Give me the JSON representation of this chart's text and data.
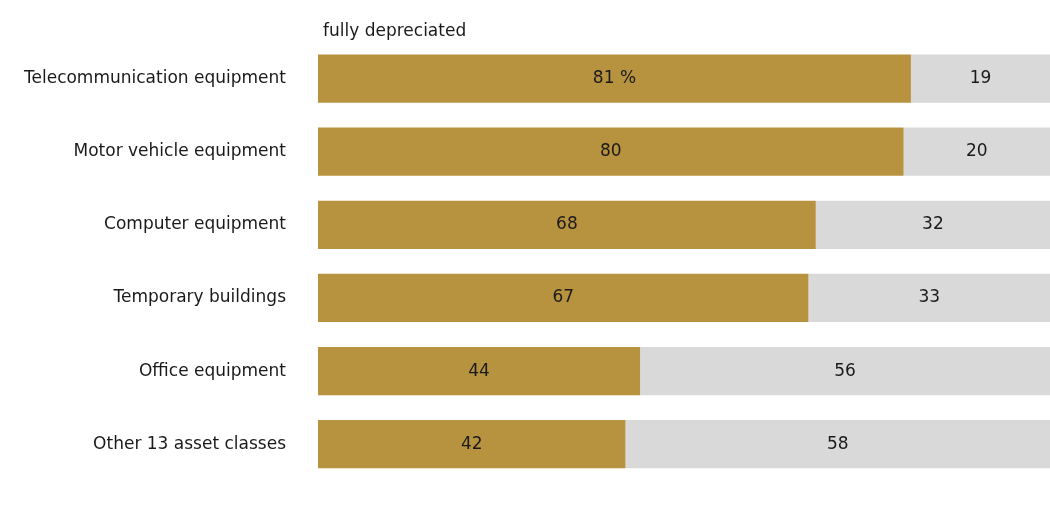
{
  "chart_data": {
    "type": "bar",
    "orientation": "horizontal",
    "stacked": true,
    "legend": false,
    "tick_labels": "y",
    "categories": [
      "Telecommunication equipment",
      "Motor vehicle equipment",
      "Computer equipment",
      "Temporary buildings",
      "Office equipment",
      "Other 13 asset classes"
    ],
    "series": [
      {
        "name": "fully depreciated",
        "color": "#b8933f",
        "values": [
          81,
          80,
          68,
          67,
          44,
          42
        ],
        "value_labels": [
          "81 %",
          "80",
          "68",
          "67",
          "44",
          "42"
        ]
      },
      {
        "color": "#d9d9d9",
        "values": [
          19,
          20,
          32,
          33,
          56,
          58
        ],
        "value_labels": [
          "19",
          "20",
          "32",
          "33",
          "56",
          "58"
        ]
      }
    ]
  }
}
